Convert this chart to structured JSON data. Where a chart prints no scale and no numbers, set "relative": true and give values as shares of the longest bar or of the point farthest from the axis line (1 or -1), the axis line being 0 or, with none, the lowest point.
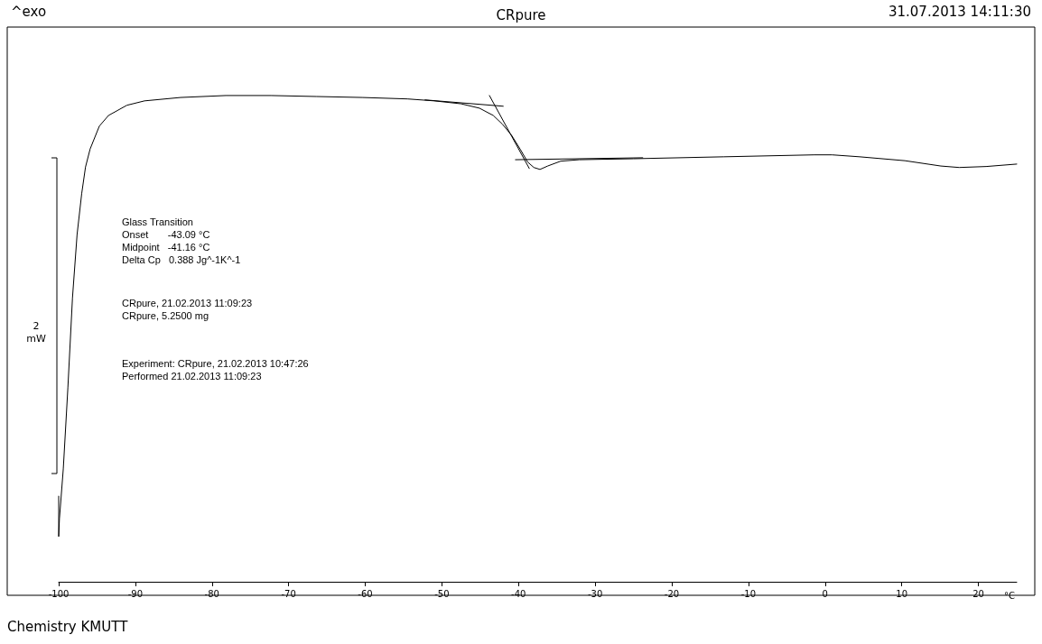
{
  "chart_data": {
    "type": "line",
    "title": "CRpure",
    "xlabel": "°C",
    "relative": true,
    "xlim": [
      -100,
      25
    ],
    "xticks": [
      -100,
      -90,
      -80,
      -70,
      -60,
      -50,
      -40,
      -30,
      -20,
      -10,
      0,
      10,
      20
    ],
    "grid": false,
    "marker": "none",
    "line_style": "solid",
    "series": [
      {
        "color": "#000000",
        "x": [
          -100,
          -100,
          -99.9,
          -99.4,
          -98.8,
          -98.2,
          -97.6,
          -97.0,
          -96.5,
          -95.9,
          -94.7,
          -93.5,
          -91.1,
          -88.8,
          -84.1,
          -78.2,
          -72.3,
          -66.4,
          -60.4,
          -54.5,
          -51.0,
          -47.5,
          -45.1,
          -43.3,
          -42.1,
          -40.9,
          -39.8,
          -38.8,
          -38.0,
          -37.2,
          -36.2,
          -34.5,
          -32.1,
          -25.0,
          -13.2,
          -1.4,
          0.9,
          4.5,
          10.4,
          15.1,
          17.5,
          21.0,
          25
        ],
        "values": [
          0.176,
          0.093,
          0.13,
          0.232,
          0.399,
          0.584,
          0.714,
          0.798,
          0.853,
          0.89,
          0.937,
          0.959,
          0.98,
          0.989,
          0.996,
          1,
          1,
          0.998,
          0.996,
          0.993,
          0.989,
          0.983,
          0.974,
          0.959,
          0.941,
          0.918,
          0.89,
          0.863,
          0.852,
          0.848,
          0.855,
          0.865,
          0.868,
          0.87,
          0.874,
          0.878,
          0.878,
          0.874,
          0.866,
          0.855,
          0.852,
          0.854,
          0.859
        ]
      },
      {
        "color": "#000000",
        "x": [
          -52.2,
          -42.0
        ],
        "values": [
          0.991,
          0.978
        ]
      },
      {
        "color": "#000000",
        "x": [
          -43.8,
          -38.6
        ],
        "values": [
          1.0,
          0.85
        ]
      },
      {
        "color": "#000000",
        "x": [
          -40.4,
          -23.8
        ],
        "values": [
          0.868,
          0.872
        ]
      }
    ],
    "annotations": [
      "^exo",
      "31.07.2013 14:11:30",
      "Glass Transition\nOnset       -43.09 °C\nMidpoint   -41.16 °C\nDelta Cp   0.388 Jg^-1K^-1",
      "CRpure, 21.02.2013 11:09:23\nCRpure, 5.2500 mg",
      "Experiment: CRpure, 21.02.2013 10:47:26\nPerformed 21.02.2013 11:09:23",
      "2\nmW",
      "Chemistry KMUTT"
    ]
  }
}
